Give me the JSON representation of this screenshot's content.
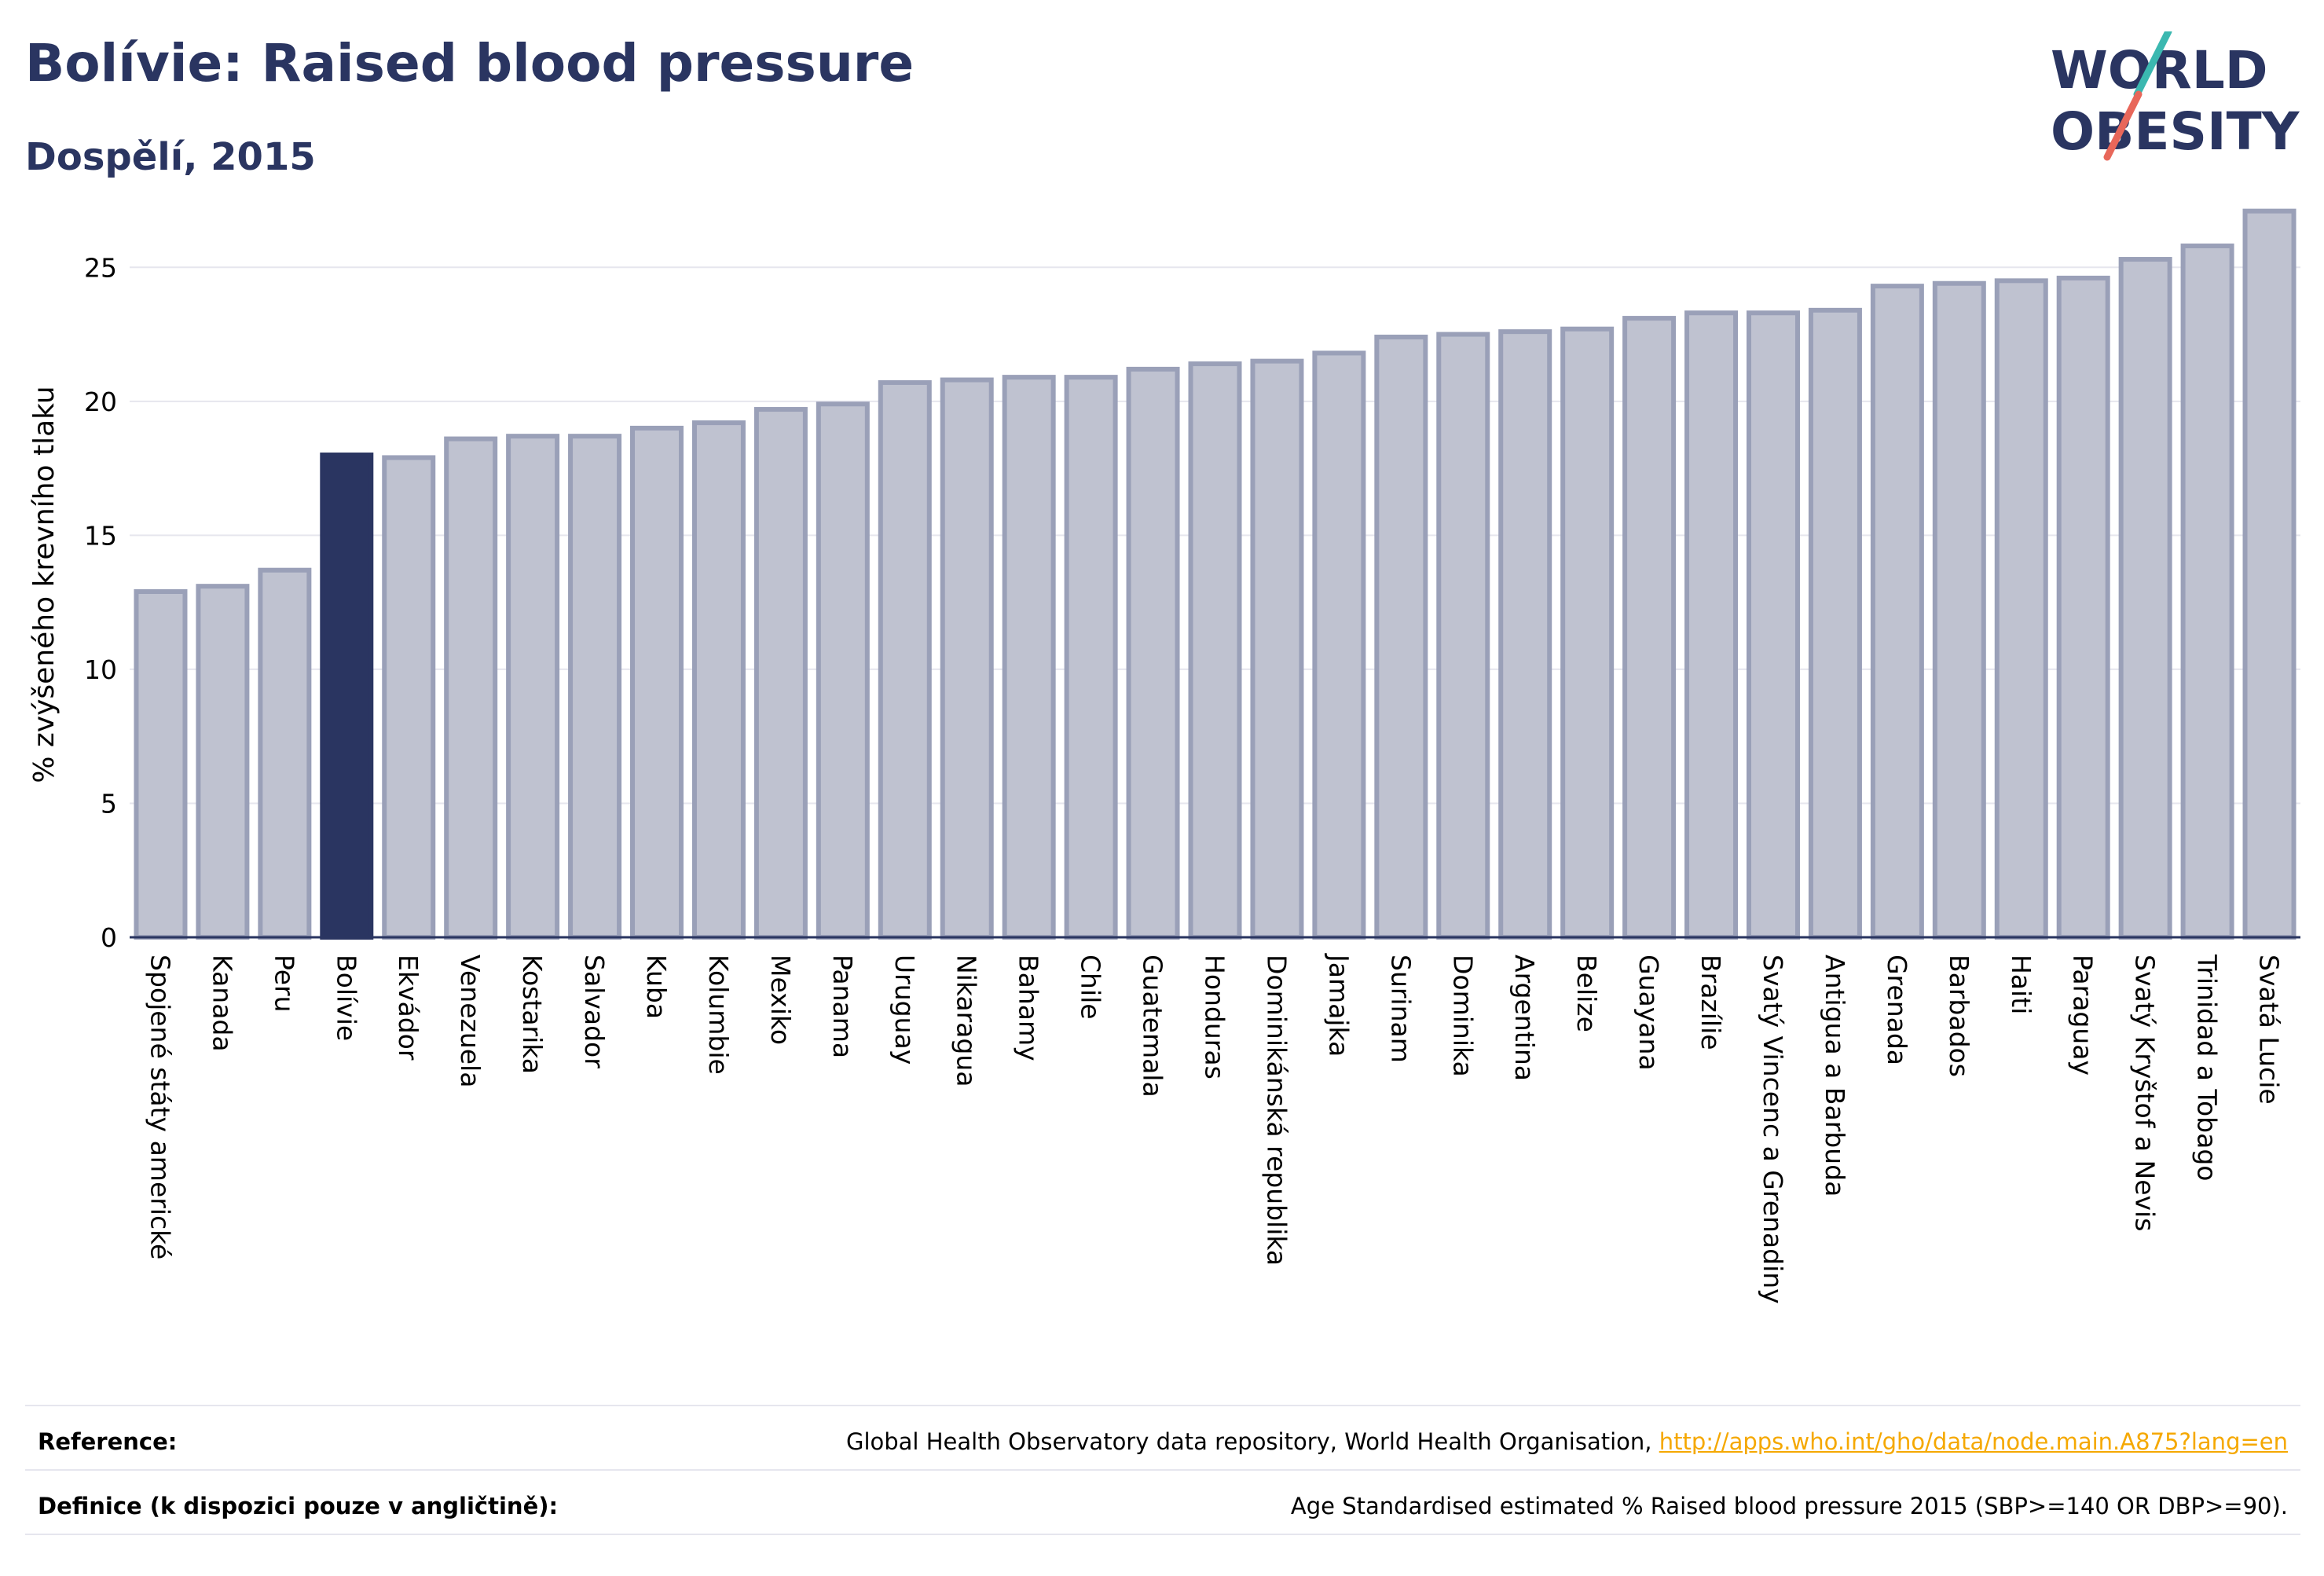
{
  "header": {
    "title": "Bolívie: Raised blood pressure",
    "subtitle": "Dospělí, 2015"
  },
  "logo": {
    "line1": "WORLD",
    "line2": "OBESITY",
    "colors": {
      "text": "#2a3561",
      "slash_teal": "#3bb8b0",
      "slash_red": "#e8675a"
    }
  },
  "chart_data": {
    "type": "bar",
    "title": "",
    "xlabel": "",
    "ylabel": "% zvýšeného krevního tlaku",
    "ylim": [
      0,
      27.5
    ],
    "yticks": [
      0,
      5,
      10,
      15,
      20,
      25
    ],
    "grid": true,
    "highlight_category": "Bolívie",
    "colors": {
      "bar_fill": "#bfc2d0",
      "bar_stroke": "#9aa0b8",
      "highlight": "#2a3561",
      "grid": "#e6e6ee",
      "axis": "#2a3561"
    },
    "categories": [
      "Spojené státy americké",
      "Kanada",
      "Peru",
      "Bolívie",
      "Ekvádor",
      "Venezuela",
      "Kostarika",
      "Salvador",
      "Kuba",
      "Kolumbie",
      "Mexiko",
      "Panama",
      "Uruguay",
      "Nikaragua",
      "Bahamy",
      "Chile",
      "Guatemala",
      "Honduras",
      "Dominikánská republika",
      "Jamajka",
      "Surinam",
      "Dominika",
      "Argentina",
      "Belize",
      "Guayana",
      "Brazílie",
      "Svatý Vincenc a Grenadiny",
      "Antigua a Barbuda",
      "Grenada",
      "Barbados",
      "Haiti",
      "Paraguay",
      "Svatý Kryštof a Nevis",
      "Trinidad a Tobago",
      "Svatá Lucie"
    ],
    "values": [
      12.9,
      13.1,
      13.7,
      18.0,
      17.9,
      18.6,
      18.7,
      18.7,
      19.0,
      19.2,
      19.7,
      19.9,
      20.7,
      20.8,
      20.9,
      20.9,
      21.2,
      21.4,
      21.5,
      21.8,
      22.4,
      22.5,
      22.6,
      22.7,
      23.1,
      23.3,
      23.3,
      23.4,
      24.3,
      24.4,
      24.5,
      24.6,
      25.3,
      25.8,
      27.1
    ]
  },
  "footer": {
    "reference_label": "Reference:",
    "reference_text": "Global Health Observatory data repository, World Health Organisation, ",
    "reference_link": "http://apps.who.int/gho/data/node.main.A875?lang=en",
    "definition_label": "Definice (k dispozici pouze v angličtině):",
    "definition_text": "Age Standardised estimated % Raised blood pressure 2015 (SBP>=140 OR DBP>=90)."
  }
}
